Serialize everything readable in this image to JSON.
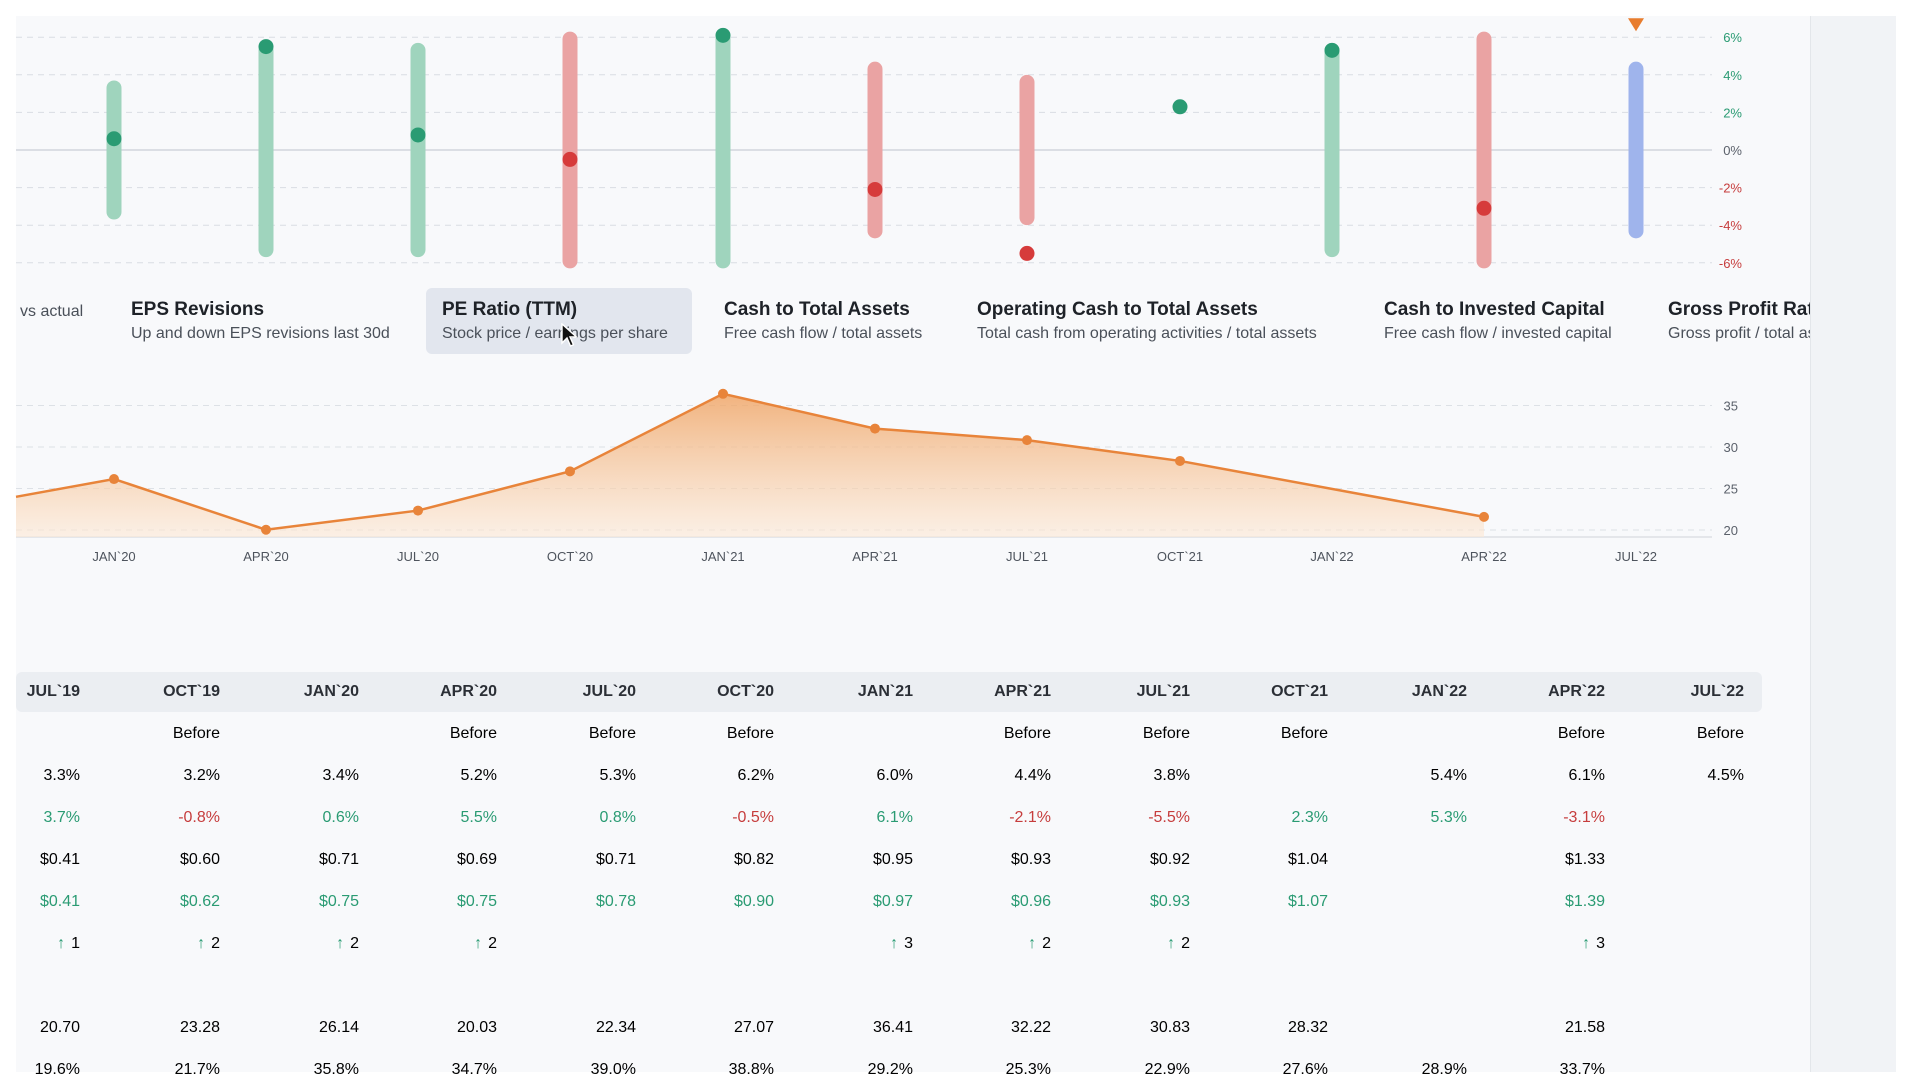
{
  "chart_data": [
    {
      "type": "range-dot",
      "y_tick_labels": [
        "6%",
        "4%",
        "2%",
        "0%",
        "-2%",
        "-4%",
        "-6%"
      ],
      "ylim": [
        -6,
        6
      ],
      "grid": true,
      "points": [
        {
          "range": [
            -3.3,
            3.3
          ],
          "value": 0.6,
          "color": "green"
        },
        {
          "range": [
            -5.3,
            5.3
          ],
          "value": 5.5,
          "color": "green"
        },
        {
          "range": [
            -5.3,
            5.3
          ],
          "value": 0.8,
          "color": "green"
        },
        {
          "range": [
            -5.9,
            5.9
          ],
          "value": -0.5,
          "color": "red"
        },
        {
          "range": [
            -5.9,
            5.9
          ],
          "value": 6.1,
          "color": "green"
        },
        {
          "range": [
            -4.3,
            4.3
          ],
          "value": -2.1,
          "color": "red"
        },
        {
          "range": [
            -3.6,
            3.6
          ],
          "value": -5.5,
          "color": "red"
        },
        {
          "range": null,
          "value": 2.3,
          "color": "green"
        },
        {
          "range": [
            -5.3,
            5.3
          ],
          "value": 5.3,
          "color": "green"
        },
        {
          "range": [
            -5.9,
            5.9
          ],
          "value": -3.1,
          "color": "red"
        },
        {
          "range": [
            -4.3,
            4.3
          ],
          "value": null,
          "color": "blue",
          "marker": "triangle"
        }
      ],
      "colors": {
        "green": "#2a9b73",
        "green_bar": "#9fd4bd",
        "red": "#d63b3b",
        "red_bar": "#eaa3a3",
        "blue_bar": "#9fb4ec",
        "orange": "#e87d2e"
      }
    },
    {
      "type": "area",
      "x": [
        "JAN`20",
        "APR`20",
        "JUL`20",
        "OCT`20",
        "JAN`21",
        "APR`21",
        "JUL`21",
        "OCT`21",
        "JAN`22",
        "APR`22",
        "JUL`22"
      ],
      "values": [
        26.14,
        20.03,
        22.34,
        27.07,
        36.41,
        32.22,
        30.83,
        28.32,
        null,
        21.58,
        null
      ],
      "lead_in_value": 24.0,
      "y_tick_labels": [
        "35",
        "30",
        "25",
        "20"
      ],
      "ylim": [
        19,
        37
      ],
      "color": "#e8843a"
    }
  ],
  "metric_cards": [
    {
      "title": "",
      "subtitle": "vs actual"
    },
    {
      "title": "EPS Revisions",
      "subtitle": "Up and down EPS revisions last 30d"
    },
    {
      "title": "PE Ratio (TTM)",
      "subtitle": "Stock price / earnings per share",
      "active": true
    },
    {
      "title": "Cash to Total Assets",
      "subtitle": "Free cash flow / total assets"
    },
    {
      "title": "Operating Cash to Total Assets",
      "subtitle": "Total cash from operating activities / total assets"
    },
    {
      "title": "Cash to Invested Capital",
      "subtitle": "Free cash flow / invested capital"
    },
    {
      "title": "Gross Profit Ratio",
      "subtitle": "Gross profit / total assets"
    }
  ],
  "table": {
    "headers": [
      "JUL`19",
      "OCT`19",
      "JAN`20",
      "APR`20",
      "JUL`20",
      "OCT`20",
      "JAN`21",
      "APR`21",
      "JUL`21",
      "OCT`21",
      "JAN`22",
      "APR`22",
      "JUL`22"
    ],
    "rows": [
      {
        "cells": [
          "",
          "Before",
          "",
          "Before",
          "Before",
          "Before",
          "",
          "Before",
          "Before",
          "Before",
          "",
          "Before",
          "Before"
        ]
      },
      {
        "cells": [
          "3.3%",
          "3.2%",
          "3.4%",
          "5.2%",
          "5.3%",
          "6.2%",
          "6.0%",
          "4.4%",
          "3.8%",
          "",
          "5.4%",
          "6.1%",
          "4.5%"
        ]
      },
      {
        "cells": [
          "3.7%",
          "-0.8%",
          "0.6%",
          "5.5%",
          "0.8%",
          "-0.5%",
          "6.1%",
          "-2.1%",
          "-5.5%",
          "2.3%",
          "5.3%",
          "-3.1%",
          ""
        ],
        "colored": true
      },
      {
        "cells": [
          "$0.41",
          "$0.60",
          "$0.71",
          "$0.69",
          "$0.71",
          "$0.82",
          "$0.95",
          "$0.93",
          "$0.92",
          "$1.04",
          "",
          "$1.33",
          ""
        ]
      },
      {
        "cells": [
          "$0.41",
          "$0.62",
          "$0.75",
          "$0.75",
          "$0.78",
          "$0.90",
          "$0.97",
          "$0.96",
          "$0.93",
          "$1.07",
          "",
          "$1.39",
          ""
        ],
        "green": true
      },
      {
        "cells": [
          "1",
          "2",
          "2",
          "2",
          "",
          "",
          "3",
          "2",
          "2",
          "",
          "",
          "3",
          ""
        ],
        "arrows": true
      },
      {
        "cells": [
          "",
          "",
          "",
          "",
          "",
          "",
          "",
          "",
          "",
          "",
          "",
          "",
          ""
        ]
      },
      {
        "cells": [
          "20.70",
          "23.28",
          "26.14",
          "20.03",
          "22.34",
          "27.07",
          "36.41",
          "32.22",
          "30.83",
          "28.32",
          "",
          "21.58",
          ""
        ]
      },
      {
        "cells": [
          "19.6%",
          "21.7%",
          "35.8%",
          "34.7%",
          "39.0%",
          "38.8%",
          "29.2%",
          "25.3%",
          "22.9%",
          "27.6%",
          "28.9%",
          "33.7%",
          ""
        ]
      }
    ]
  },
  "icons": {
    "up_arrow": "↑",
    "cursor": "cursor-arrow-icon"
  }
}
